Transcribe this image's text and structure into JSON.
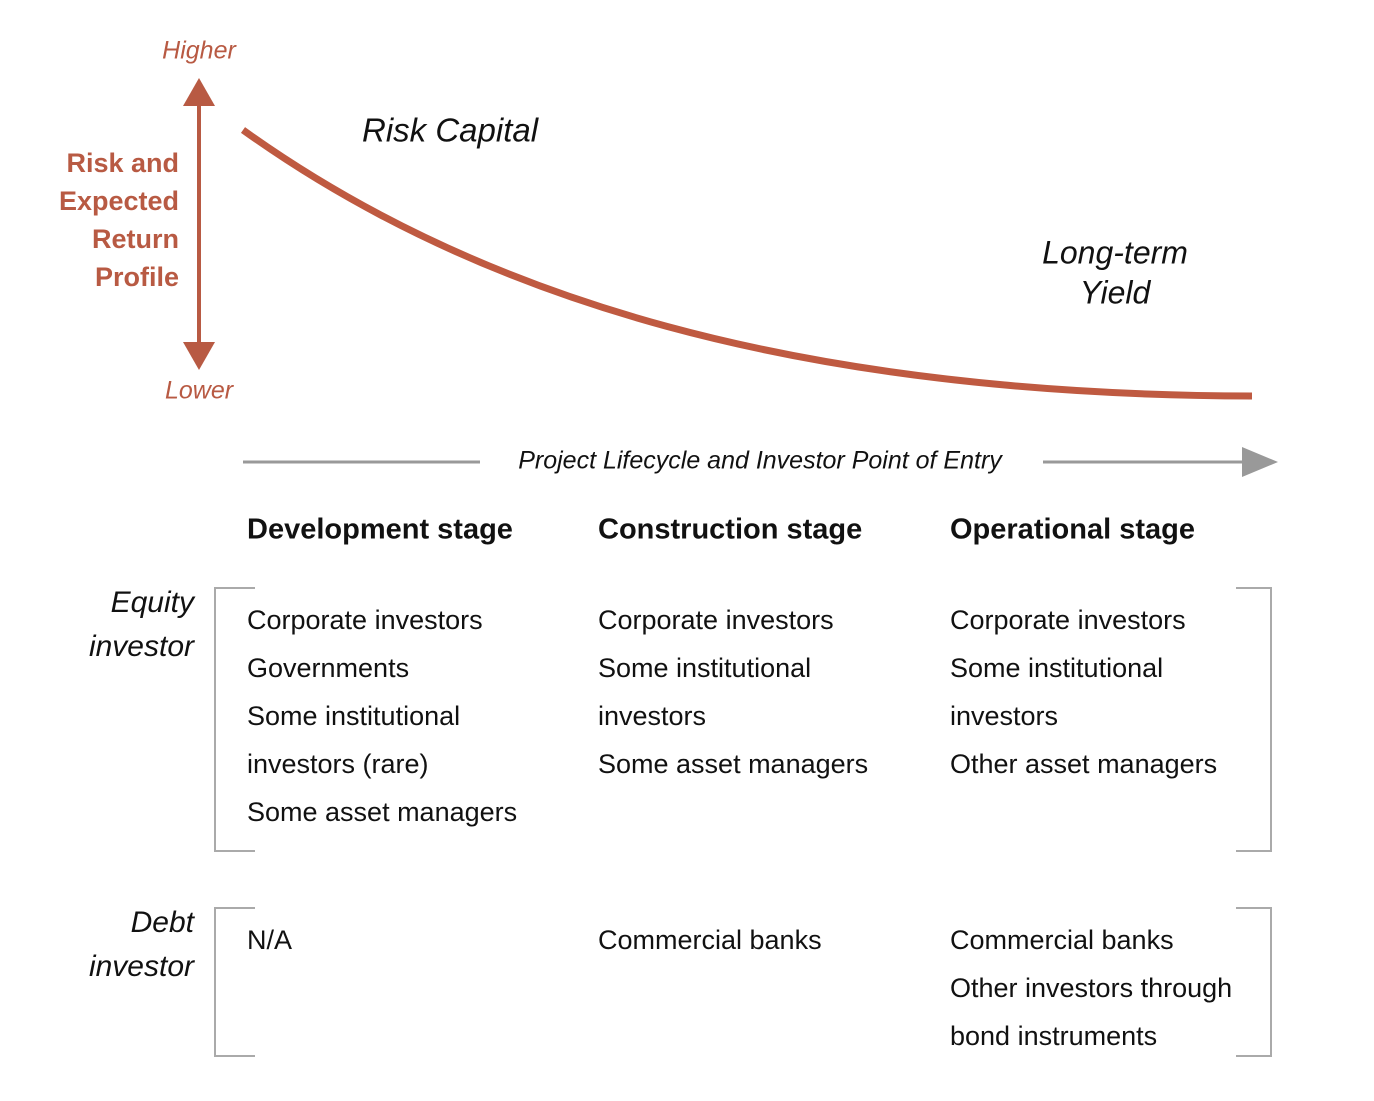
{
  "axis": {
    "top": "Higher",
    "bottom": "Lower",
    "label": [
      "Risk and",
      "Expected",
      "Return",
      "Profile"
    ]
  },
  "curve_labels": {
    "start": "Risk Capital",
    "end": [
      "Long-term",
      "Yield"
    ]
  },
  "lifecycle": "Project Lifecycle and Investor Point of Entry",
  "stages": [
    "Development stage",
    "Construction stage",
    "Operational stage"
  ],
  "rows": [
    {
      "label": [
        "Equity",
        "investor"
      ],
      "cells": [
        [
          "Corporate investors",
          "Governments",
          "Some institutional",
          "investors (rare)",
          "Some asset managers"
        ],
        [
          "Corporate investors",
          "Some institutional",
          "investors",
          "Some asset managers"
        ],
        [
          "Corporate investors",
          "Some institutional",
          "investors",
          "Other asset managers"
        ]
      ]
    },
    {
      "label": [
        "Debt",
        "investor"
      ],
      "cells": [
        [
          "N/A"
        ],
        [
          "Commercial banks"
        ],
        [
          "Commercial banks",
          "Other investors through",
          "bond instruments"
        ]
      ]
    }
  ]
}
